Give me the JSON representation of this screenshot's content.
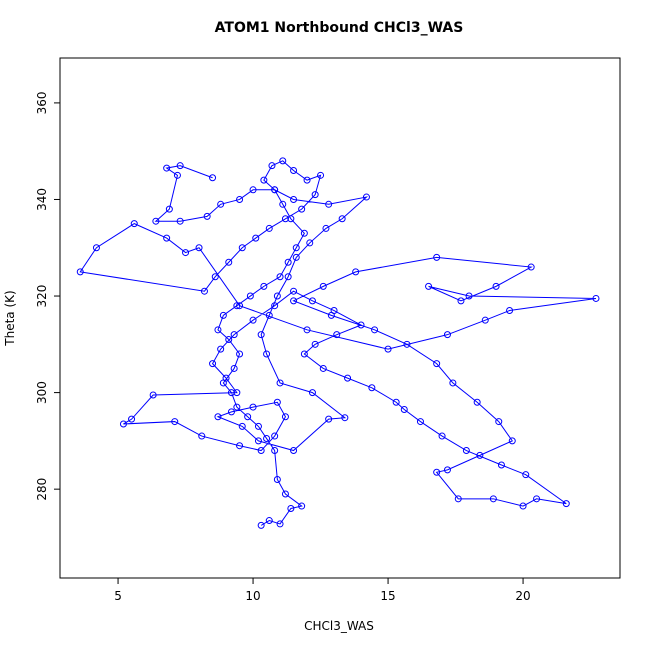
{
  "chart_data": {
    "type": "line",
    "title": "ATOM1 Northbound CHCl3_WAS",
    "x_label": "CHCl3_WAS",
    "y_label": "Theta (K)",
    "xlim": [
      2.85,
      23.59
    ],
    "ylim": [
      261.6,
      369.3
    ],
    "xticks": [
      5,
      10,
      15,
      20
    ],
    "yticks": [
      280,
      300,
      320,
      340,
      360
    ],
    "x": [
      10.3,
      10.6,
      11.0,
      11.4,
      11.8,
      11.2,
      10.9,
      10.8,
      10.5,
      10.2,
      9.8,
      9.4,
      9.2,
      8.9,
      9.3,
      9.5,
      9.1,
      8.7,
      8.9,
      9.4,
      9.9,
      10.4,
      11.0,
      11.3,
      11.6,
      11.9,
      11.4,
      11.1,
      10.8,
      10.4,
      10.7,
      11.1,
      11.5,
      12.0,
      12.5,
      12.3,
      11.8,
      11.2,
      10.6,
      10.1,
      9.6,
      9.1,
      8.6,
      8.2,
      3.6,
      4.2,
      5.6,
      6.8,
      7.5,
      8.0,
      9.5,
      12.0,
      15.0,
      17.2,
      18.6,
      19.5,
      22.7,
      18.0,
      16.5,
      17.7,
      19.0,
      20.3,
      16.8,
      13.8,
      12.6,
      11.5,
      12.9,
      14.5,
      15.7,
      16.8,
      17.4,
      18.3,
      19.1,
      19.6,
      18.4,
      17.2,
      16.8,
      17.6,
      18.9,
      20.0,
      20.5,
      21.6,
      20.1,
      19.2,
      17.9,
      17.0,
      16.2,
      15.6,
      15.3,
      14.4,
      13.5,
      12.6,
      11.9,
      12.3,
      13.1,
      14.0,
      13.0,
      12.2,
      11.5,
      10.8,
      10.0,
      9.3,
      8.8,
      8.5,
      9.0,
      9.4,
      6.3,
      5.5,
      5.2,
      7.1,
      8.1,
      9.5,
      10.3,
      10.8,
      11.2,
      10.9,
      10.0,
      9.2,
      8.7,
      9.6,
      10.2,
      11.5,
      12.8,
      13.4,
      12.2,
      11.0,
      10.5,
      10.3,
      10.6,
      10.9,
      11.3,
      11.6,
      12.1,
      12.7,
      13.3,
      14.2,
      12.8,
      11.5,
      10.8,
      10.0,
      9.5,
      8.8,
      8.3,
      7.3,
      6.4,
      6.9,
      7.2,
      6.8,
      7.3,
      8.5
    ],
    "series": [
      {
        "color": "#0000ff",
        "values": [
          272.5,
          273.5,
          272.8,
          276,
          276.5,
          279,
          282,
          288,
          290.5,
          293,
          295,
          297,
          300,
          302,
          305,
          308,
          311,
          313,
          316,
          318,
          320,
          322,
          324,
          327,
          330,
          333,
          336,
          339,
          342,
          344,
          347,
          348,
          346,
          344,
          345,
          341,
          338,
          336,
          334,
          332,
          330,
          327,
          324,
          321,
          325,
          330,
          335,
          332,
          329,
          330,
          318,
          313,
          309,
          312,
          315,
          317,
          319.5,
          320,
          322,
          319,
          322,
          326,
          328,
          325,
          322,
          319,
          316,
          313,
          310,
          306,
          302,
          298,
          294,
          290,
          287,
          284,
          283.5,
          278,
          278,
          276.5,
          278,
          277,
          283,
          285,
          288,
          291,
          294,
          296.5,
          298,
          301,
          303,
          305,
          308,
          310,
          312,
          314,
          317,
          319,
          321,
          318,
          315,
          312,
          309,
          306,
          303,
          300,
          299.5,
          294.5,
          293.5,
          294,
          291,
          289,
          288,
          291,
          295,
          298,
          297,
          296,
          295,
          293,
          290,
          288,
          294.5,
          294.8,
          300,
          302,
          308,
          312,
          316,
          320,
          324,
          328,
          331,
          334,
          336,
          340.5,
          339,
          340,
          342,
          342,
          340,
          339,
          336.5,
          335.5,
          335.5,
          338,
          345,
          346.5,
          347,
          344.5
        ]
      }
    ]
  }
}
